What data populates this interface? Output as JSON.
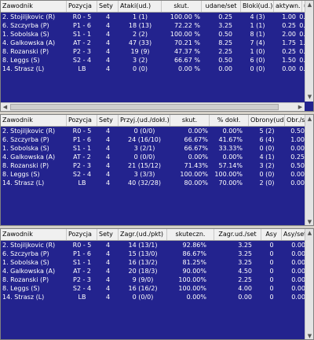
{
  "panels": [
    {
      "columns": [
        "Zawodnik",
        "Pozycja",
        "Sety",
        "Ataki(ud.)",
        "skut.",
        "udane/set",
        "Bloki(ud.)",
        "aktywn.",
        "ud./se"
      ],
      "rows": [
        [
          "2. Stojiljkovic (R)",
          "R0 - 5",
          "4",
          "1 (1)",
          "100.00 %",
          "0.25",
          "4 (3)",
          "1.00",
          "0.75"
        ],
        [
          "6. Szczyrba (P)",
          "P1 - 6",
          "4",
          "18 (13)",
          "72.22 %",
          "3.25",
          "1 (1)",
          "0.25",
          "0.25"
        ],
        [
          "1. Sobolska (S)",
          "S1 - 1",
          "4",
          "2 (2)",
          "100.00 %",
          "0.50",
          "8 (1)",
          "2.00",
          "0.25"
        ],
        [
          "4. Galkowska (A)",
          "AT - 2",
          "4",
          "47 (33)",
          "70.21 %",
          "8.25",
          "7 (4)",
          "1.75",
          "1.00"
        ],
        [
          "8. Rozanski (P)",
          "P2 - 3",
          "4",
          "19 (9)",
          "47.37 %",
          "2.25",
          "1 (0)",
          "0.25",
          "0.00"
        ],
        [
          "8. Leggs (S)",
          "S2 - 4",
          "4",
          "3 (2)",
          "66.67 %",
          "0.50",
          "6 (0)",
          "1.50",
          "0.00"
        ],
        [
          "14. Strasz (L)",
          "LB",
          "4",
          "0 (0)",
          "0.00 %",
          "0.00",
          "0 (0)",
          "0.00",
          "0.00"
        ]
      ]
    },
    {
      "columns": [
        "Zawodnik",
        "Pozycja",
        "Sety",
        "Przyj.(ud./dokł.)",
        "skut.",
        "% dokł.",
        "Obrony(ud.)",
        "Obr./set"
      ],
      "rows": [
        [
          "2. Stojiljkovic (R)",
          "R0 - 5",
          "4",
          "0 (0/0)",
          "0.00%",
          "0.00%",
          "5 (2)",
          "0.50"
        ],
        [
          "6. Szczyrba (P)",
          "P1 - 6",
          "4",
          "24 (16/10)",
          "66.67%",
          "41.67%",
          "6 (4)",
          "1.00"
        ],
        [
          "1. Sobolska (S)",
          "S1 - 1",
          "4",
          "3 (2/1)",
          "66.67%",
          "33.33%",
          "0 (0)",
          "0.00"
        ],
        [
          "4. Galkowska (A)",
          "AT - 2",
          "4",
          "0 (0/0)",
          "0.00%",
          "0.00%",
          "4 (1)",
          "0.25"
        ],
        [
          "8. Rozanski (P)",
          "P2 - 3",
          "4",
          "21 (15/12)",
          "71.43%",
          "57.14%",
          "3 (2)",
          "0.50"
        ],
        [
          "8. Leggs (S)",
          "S2 - 4",
          "4",
          "3 (3/3)",
          "100.00%",
          "100.00%",
          "0 (0)",
          "0.00"
        ],
        [
          "14. Strasz (L)",
          "LB",
          "4",
          "40 (32/28)",
          "80.00%",
          "70.00%",
          "2 (0)",
          "0.00"
        ]
      ]
    },
    {
      "columns": [
        "Zawodnik",
        "Pozycja",
        "Sety",
        "Zagr.(ud./pkt)",
        "skuteczn.",
        "Zagr.ud./set",
        "Asy",
        "Asy/set"
      ],
      "rows": [
        [
          "2. Stojiljkovic (R)",
          "R0 - 5",
          "4",
          "14 (13/1)",
          "92.86%",
          "3.25",
          "0",
          "0.00"
        ],
        [
          "6. Szczyrba (P)",
          "P1 - 6",
          "4",
          "15 (13/0)",
          "86.67%",
          "3.25",
          "0",
          "0.00"
        ],
        [
          "1. Sobolska (S)",
          "S1 - 1",
          "4",
          "16 (13/2)",
          "81.25%",
          "3.25",
          "0",
          "0.00"
        ],
        [
          "4. Galkowska (A)",
          "AT - 2",
          "4",
          "20 (18/3)",
          "90.00%",
          "4.50",
          "0",
          "0.00"
        ],
        [
          "8. Rozanski (P)",
          "P2 - 3",
          "4",
          "9 (9/0)",
          "100.00%",
          "2.25",
          "0",
          "0.00"
        ],
        [
          "8. Leggs (S)",
          "S2 - 4",
          "4",
          "16 (16/2)",
          "100.00%",
          "4.00",
          "0",
          "0.00"
        ],
        [
          "14. Strasz (L)",
          "LB",
          "4",
          "0 (0/0)",
          "0.00%",
          "0.00",
          "0",
          "0.00"
        ]
      ]
    }
  ]
}
